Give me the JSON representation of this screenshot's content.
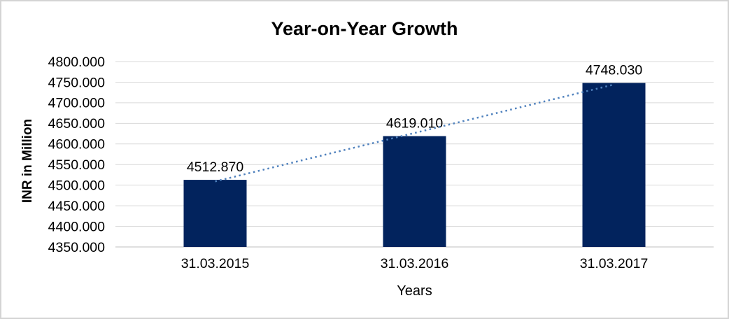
{
  "frame": {
    "background": "#ffffff",
    "border_color": "#d4d4d4"
  },
  "chart_data": {
    "type": "bar",
    "title": "Year-on-Year Growth",
    "xlabel": "Years",
    "ylabel": "INR in Million",
    "categories": [
      "31.03.2015",
      "31.03.2016",
      "31.03.2017"
    ],
    "values": [
      4512.87,
      4619.01,
      4748.03
    ],
    "data_labels": [
      "4512.870",
      "4619.010",
      "4748.030"
    ],
    "y_ticks": [
      "4800.000",
      "4750.000",
      "4700.000",
      "4650.000",
      "4600.000",
      "4550.000",
      "4500.000",
      "4450.000",
      "4400.000",
      "4350.000"
    ],
    "ylim": [
      4350,
      4800
    ],
    "y_step": 50,
    "grid": true,
    "legend": "none",
    "bar_color": "#02235d",
    "gridline_color": "#d9d9d9",
    "axis_line_color": "#bfbfbf",
    "trendline": {
      "type": "linear",
      "style": "dotted",
      "color": "#4f81bd"
    }
  }
}
